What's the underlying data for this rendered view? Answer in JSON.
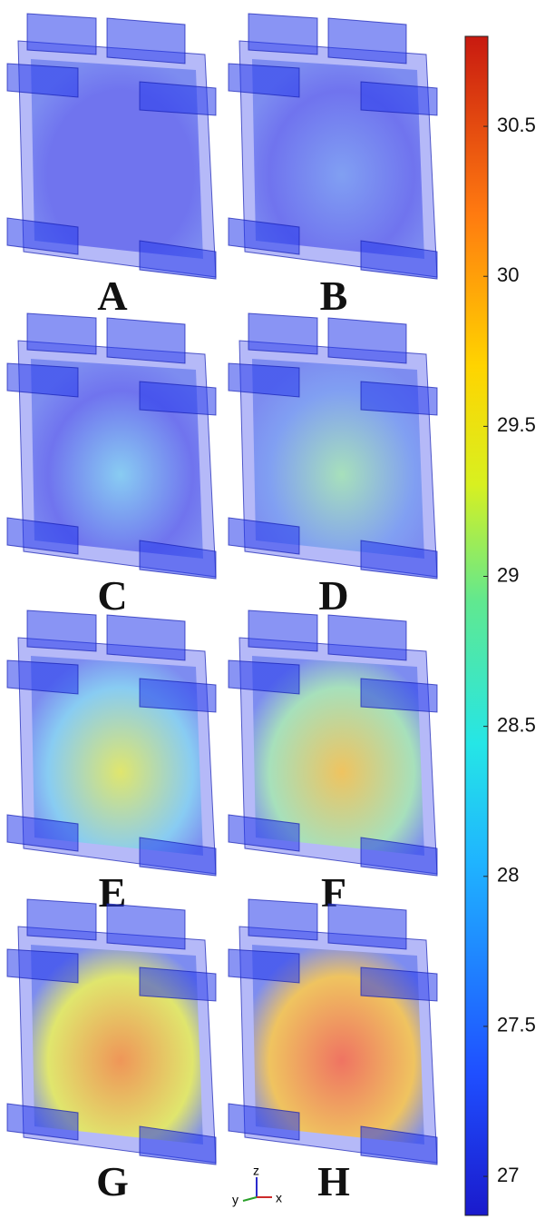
{
  "panels": [
    {
      "label": "A"
    },
    {
      "label": "B"
    },
    {
      "label": "C"
    },
    {
      "label": "D"
    },
    {
      "label": "E"
    },
    {
      "label": "F"
    },
    {
      "label": "G"
    },
    {
      "label": "H"
    }
  ],
  "colorbar": {
    "range": [
      26.87,
      30.8
    ],
    "ticks": [
      27,
      27.5,
      28,
      28.5,
      29,
      29.5,
      30,
      30.5
    ]
  },
  "axis_triad": {
    "z": "z",
    "y": "y",
    "x": "x"
  }
}
